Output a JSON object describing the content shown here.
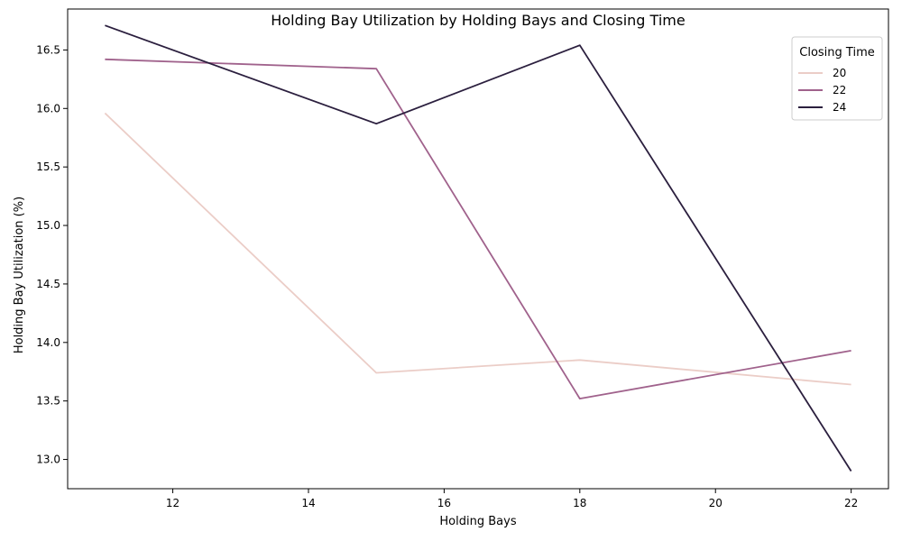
{
  "chart_data": {
    "type": "line",
    "title": "Holding Bay Utilization by Holding Bays and Closing Time",
    "xlabel": "Holding Bays",
    "ylabel": "Holding Bay Utilization (%)",
    "xlim": [
      10.45,
      22.55
    ],
    "ylim": [
      12.75,
      16.85
    ],
    "xticks": [
      12,
      14,
      16,
      18,
      20,
      22
    ],
    "yticks": [
      13.0,
      13.5,
      14.0,
      14.5,
      15.0,
      15.5,
      16.0,
      16.5
    ],
    "x": [
      11,
      15,
      18,
      22
    ],
    "legend": {
      "title": "Closing Time",
      "placement": "top-right"
    },
    "grid": false,
    "series": [
      {
        "name": "20",
        "color": "#ebcdc7",
        "values": [
          15.96,
          13.74,
          13.85,
          13.64
        ]
      },
      {
        "name": "22",
        "color": "#a0628c",
        "values": [
          16.42,
          16.34,
          13.52,
          13.93
        ]
      },
      {
        "name": "24",
        "color": "#2b1f3e",
        "values": [
          16.71,
          15.87,
          16.54,
          12.9
        ]
      }
    ]
  }
}
